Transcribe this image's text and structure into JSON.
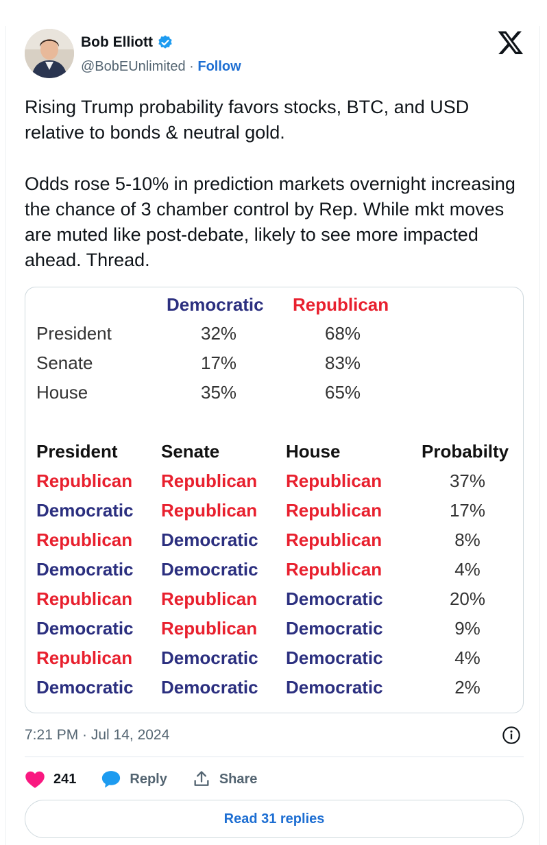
{
  "author": {
    "name": "Bob Elliott",
    "handle": "@BobEUnlimited",
    "separator": " · ",
    "follow_label": "Follow"
  },
  "tweet": {
    "paragraphs": [
      "Rising Trump probability favors stocks, BTC, and USD relative to bonds & neutral gold.",
      "Odds rose 5-10% in prediction markets overnight increasing the chance of 3 chamber control by Rep. While mkt moves are muted like post-debate, likely to see more impacted ahead. Thread."
    ],
    "timestamp": "7:21 PM · Jul 14, 2024"
  },
  "table1": {
    "headers": [
      "Democratic",
      "Republican"
    ],
    "rows": [
      {
        "label": "President",
        "dem": "32%",
        "rep": "68%"
      },
      {
        "label": "Senate",
        "dem": "17%",
        "rep": "83%"
      },
      {
        "label": "House",
        "dem": "35%",
        "rep": "65%"
      }
    ]
  },
  "table2": {
    "headers": [
      "President",
      "Senate",
      "House",
      "Probabilty"
    ],
    "rows": [
      [
        "Republican",
        "Republican",
        "Republican",
        "37%"
      ],
      [
        "Democratic",
        "Republican",
        "Republican",
        "17%"
      ],
      [
        "Republican",
        "Democratic",
        "Republican",
        "8%"
      ],
      [
        "Democratic",
        "Democratic",
        "Republican",
        "4%"
      ],
      [
        "Republican",
        "Republican",
        "Democratic",
        "20%"
      ],
      [
        "Democratic",
        "Republican",
        "Democratic",
        "9%"
      ],
      [
        "Republican",
        "Democratic",
        "Democratic",
        "4%"
      ],
      [
        "Democratic",
        "Democratic",
        "Democratic",
        "2%"
      ]
    ]
  },
  "actions": {
    "like_count": "241",
    "reply_label": "Reply",
    "share_label": "Share"
  },
  "read_replies_label": "Read 31 replies",
  "colors": {
    "democratic": "#2b2f7f",
    "republican": "#e8202e",
    "link": "#1d6ed2",
    "like": "#f91880"
  },
  "icons": [
    "verified-badge-icon",
    "x-logo-icon",
    "info-icon",
    "heart-icon",
    "reply-bubble-icon",
    "share-icon"
  ]
}
